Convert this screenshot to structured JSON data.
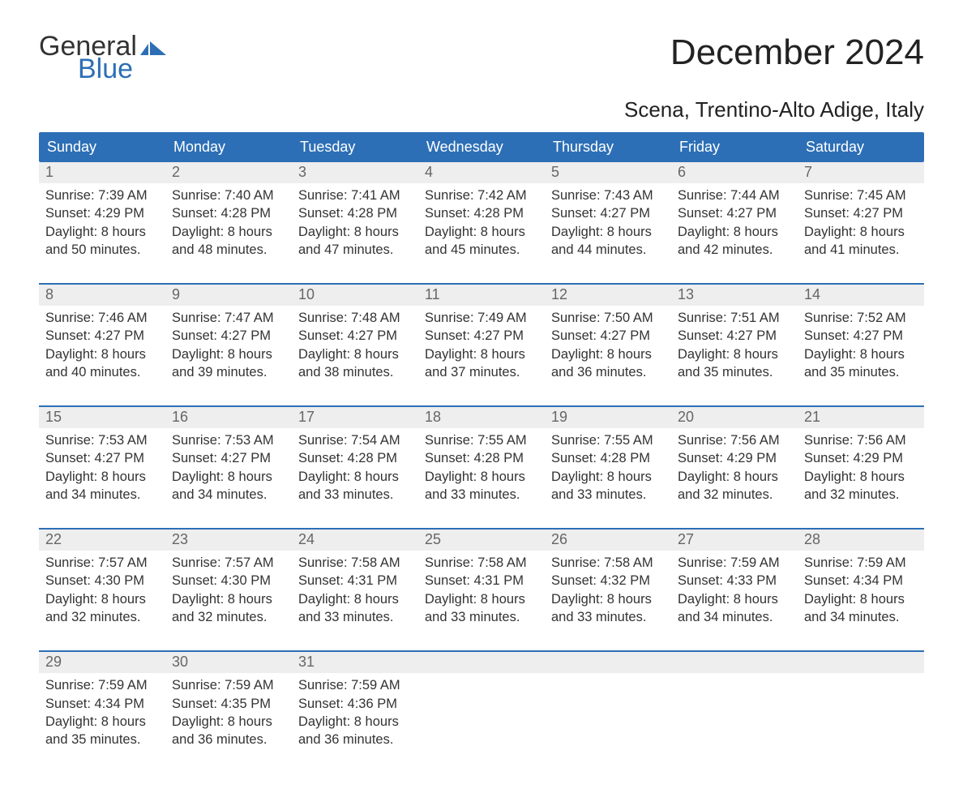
{
  "brand": {
    "line1": "General",
    "line2": "Blue",
    "flag_color": "#2d6fb6"
  },
  "header": {
    "title": "December 2024",
    "subtitle": "Scena, Trentino-Alto Adige, Italy"
  },
  "colors": {
    "header_bg": "#2d6fb6",
    "header_text": "#ffffff",
    "daynum_bg": "#eeeeee",
    "daynum_text": "#666666",
    "body_text": "#333333",
    "page_bg": "#ffffff",
    "week_divider": "#2d6fb6"
  },
  "typography": {
    "title_fontsize": 44,
    "subtitle_fontsize": 26,
    "header_fontsize": 18,
    "cell_fontsize": 16.5
  },
  "calendar": {
    "type": "table",
    "day_names": [
      "Sunday",
      "Monday",
      "Tuesday",
      "Wednesday",
      "Thursday",
      "Friday",
      "Saturday"
    ],
    "weeks": [
      [
        {
          "num": "1",
          "sunrise": "Sunrise: 7:39 AM",
          "sunset": "Sunset: 4:29 PM",
          "day1": "Daylight: 8 hours",
          "day2": "and 50 minutes."
        },
        {
          "num": "2",
          "sunrise": "Sunrise: 7:40 AM",
          "sunset": "Sunset: 4:28 PM",
          "day1": "Daylight: 8 hours",
          "day2": "and 48 minutes."
        },
        {
          "num": "3",
          "sunrise": "Sunrise: 7:41 AM",
          "sunset": "Sunset: 4:28 PM",
          "day1": "Daylight: 8 hours",
          "day2": "and 47 minutes."
        },
        {
          "num": "4",
          "sunrise": "Sunrise: 7:42 AM",
          "sunset": "Sunset: 4:28 PM",
          "day1": "Daylight: 8 hours",
          "day2": "and 45 minutes."
        },
        {
          "num": "5",
          "sunrise": "Sunrise: 7:43 AM",
          "sunset": "Sunset: 4:27 PM",
          "day1": "Daylight: 8 hours",
          "day2": "and 44 minutes."
        },
        {
          "num": "6",
          "sunrise": "Sunrise: 7:44 AM",
          "sunset": "Sunset: 4:27 PM",
          "day1": "Daylight: 8 hours",
          "day2": "and 42 minutes."
        },
        {
          "num": "7",
          "sunrise": "Sunrise: 7:45 AM",
          "sunset": "Sunset: 4:27 PM",
          "day1": "Daylight: 8 hours",
          "day2": "and 41 minutes."
        }
      ],
      [
        {
          "num": "8",
          "sunrise": "Sunrise: 7:46 AM",
          "sunset": "Sunset: 4:27 PM",
          "day1": "Daylight: 8 hours",
          "day2": "and 40 minutes."
        },
        {
          "num": "9",
          "sunrise": "Sunrise: 7:47 AM",
          "sunset": "Sunset: 4:27 PM",
          "day1": "Daylight: 8 hours",
          "day2": "and 39 minutes."
        },
        {
          "num": "10",
          "sunrise": "Sunrise: 7:48 AM",
          "sunset": "Sunset: 4:27 PM",
          "day1": "Daylight: 8 hours",
          "day2": "and 38 minutes."
        },
        {
          "num": "11",
          "sunrise": "Sunrise: 7:49 AM",
          "sunset": "Sunset: 4:27 PM",
          "day1": "Daylight: 8 hours",
          "day2": "and 37 minutes."
        },
        {
          "num": "12",
          "sunrise": "Sunrise: 7:50 AM",
          "sunset": "Sunset: 4:27 PM",
          "day1": "Daylight: 8 hours",
          "day2": "and 36 minutes."
        },
        {
          "num": "13",
          "sunrise": "Sunrise: 7:51 AM",
          "sunset": "Sunset: 4:27 PM",
          "day1": "Daylight: 8 hours",
          "day2": "and 35 minutes."
        },
        {
          "num": "14",
          "sunrise": "Sunrise: 7:52 AM",
          "sunset": "Sunset: 4:27 PM",
          "day1": "Daylight: 8 hours",
          "day2": "and 35 minutes."
        }
      ],
      [
        {
          "num": "15",
          "sunrise": "Sunrise: 7:53 AM",
          "sunset": "Sunset: 4:27 PM",
          "day1": "Daylight: 8 hours",
          "day2": "and 34 minutes."
        },
        {
          "num": "16",
          "sunrise": "Sunrise: 7:53 AM",
          "sunset": "Sunset: 4:27 PM",
          "day1": "Daylight: 8 hours",
          "day2": "and 34 minutes."
        },
        {
          "num": "17",
          "sunrise": "Sunrise: 7:54 AM",
          "sunset": "Sunset: 4:28 PM",
          "day1": "Daylight: 8 hours",
          "day2": "and 33 minutes."
        },
        {
          "num": "18",
          "sunrise": "Sunrise: 7:55 AM",
          "sunset": "Sunset: 4:28 PM",
          "day1": "Daylight: 8 hours",
          "day2": "and 33 minutes."
        },
        {
          "num": "19",
          "sunrise": "Sunrise: 7:55 AM",
          "sunset": "Sunset: 4:28 PM",
          "day1": "Daylight: 8 hours",
          "day2": "and 33 minutes."
        },
        {
          "num": "20",
          "sunrise": "Sunrise: 7:56 AM",
          "sunset": "Sunset: 4:29 PM",
          "day1": "Daylight: 8 hours",
          "day2": "and 32 minutes."
        },
        {
          "num": "21",
          "sunrise": "Sunrise: 7:56 AM",
          "sunset": "Sunset: 4:29 PM",
          "day1": "Daylight: 8 hours",
          "day2": "and 32 minutes."
        }
      ],
      [
        {
          "num": "22",
          "sunrise": "Sunrise: 7:57 AM",
          "sunset": "Sunset: 4:30 PM",
          "day1": "Daylight: 8 hours",
          "day2": "and 32 minutes."
        },
        {
          "num": "23",
          "sunrise": "Sunrise: 7:57 AM",
          "sunset": "Sunset: 4:30 PM",
          "day1": "Daylight: 8 hours",
          "day2": "and 32 minutes."
        },
        {
          "num": "24",
          "sunrise": "Sunrise: 7:58 AM",
          "sunset": "Sunset: 4:31 PM",
          "day1": "Daylight: 8 hours",
          "day2": "and 33 minutes."
        },
        {
          "num": "25",
          "sunrise": "Sunrise: 7:58 AM",
          "sunset": "Sunset: 4:31 PM",
          "day1": "Daylight: 8 hours",
          "day2": "and 33 minutes."
        },
        {
          "num": "26",
          "sunrise": "Sunrise: 7:58 AM",
          "sunset": "Sunset: 4:32 PM",
          "day1": "Daylight: 8 hours",
          "day2": "and 33 minutes."
        },
        {
          "num": "27",
          "sunrise": "Sunrise: 7:59 AM",
          "sunset": "Sunset: 4:33 PM",
          "day1": "Daylight: 8 hours",
          "day2": "and 34 minutes."
        },
        {
          "num": "28",
          "sunrise": "Sunrise: 7:59 AM",
          "sunset": "Sunset: 4:34 PM",
          "day1": "Daylight: 8 hours",
          "day2": "and 34 minutes."
        }
      ],
      [
        {
          "num": "29",
          "sunrise": "Sunrise: 7:59 AM",
          "sunset": "Sunset: 4:34 PM",
          "day1": "Daylight: 8 hours",
          "day2": "and 35 minutes."
        },
        {
          "num": "30",
          "sunrise": "Sunrise: 7:59 AM",
          "sunset": "Sunset: 4:35 PM",
          "day1": "Daylight: 8 hours",
          "day2": "and 36 minutes."
        },
        {
          "num": "31",
          "sunrise": "Sunrise: 7:59 AM",
          "sunset": "Sunset: 4:36 PM",
          "day1": "Daylight: 8 hours",
          "day2": "and 36 minutes."
        },
        null,
        null,
        null,
        null
      ]
    ]
  }
}
